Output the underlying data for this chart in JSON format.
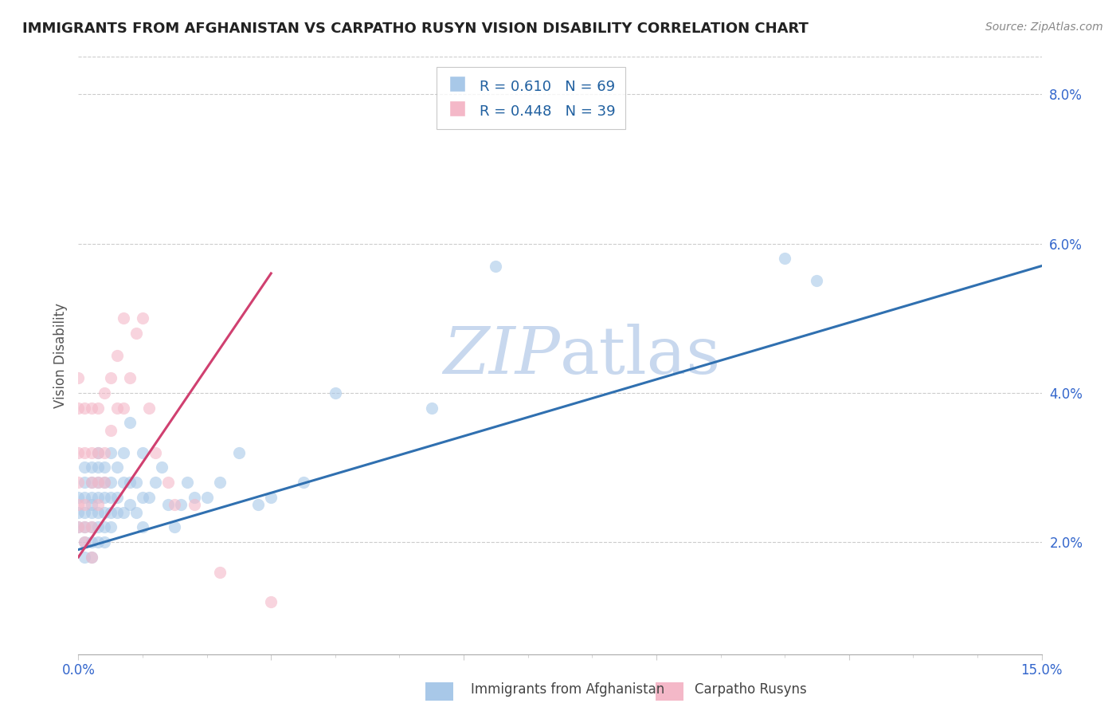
{
  "title": "IMMIGRANTS FROM AFGHANISTAN VS CARPATHO RUSYN VISION DISABILITY CORRELATION CHART",
  "source": "Source: ZipAtlas.com",
  "ylabel": "Vision Disability",
  "xmin": 0.0,
  "xmax": 0.15,
  "ymin": 0.005,
  "ymax": 0.085,
  "color_blue": "#a8c8e8",
  "color_pink": "#f4b8c8",
  "color_blue_line": "#3070b0",
  "color_pink_line": "#d04070",
  "color_blue_dark": "#2060a0",
  "watermark_color": "#c8d8ee",
  "afghanistan_x": [
    0.0,
    0.0,
    0.0,
    0.001,
    0.001,
    0.001,
    0.001,
    0.001,
    0.001,
    0.001,
    0.002,
    0.002,
    0.002,
    0.002,
    0.002,
    0.002,
    0.002,
    0.002,
    0.003,
    0.003,
    0.003,
    0.003,
    0.003,
    0.003,
    0.003,
    0.004,
    0.004,
    0.004,
    0.004,
    0.004,
    0.004,
    0.005,
    0.005,
    0.005,
    0.005,
    0.005,
    0.006,
    0.006,
    0.006,
    0.007,
    0.007,
    0.007,
    0.008,
    0.008,
    0.008,
    0.009,
    0.009,
    0.01,
    0.01,
    0.01,
    0.011,
    0.012,
    0.013,
    0.014,
    0.015,
    0.016,
    0.017,
    0.018,
    0.02,
    0.022,
    0.025,
    0.028,
    0.03,
    0.035,
    0.04,
    0.055,
    0.065,
    0.11,
    0.115
  ],
  "afghanistan_y": [
    0.022,
    0.024,
    0.026,
    0.018,
    0.02,
    0.022,
    0.024,
    0.026,
    0.028,
    0.03,
    0.018,
    0.02,
    0.022,
    0.024,
    0.025,
    0.026,
    0.028,
    0.03,
    0.02,
    0.022,
    0.024,
    0.026,
    0.028,
    0.03,
    0.032,
    0.02,
    0.022,
    0.024,
    0.026,
    0.028,
    0.03,
    0.022,
    0.024,
    0.026,
    0.028,
    0.032,
    0.024,
    0.026,
    0.03,
    0.024,
    0.028,
    0.032,
    0.025,
    0.028,
    0.036,
    0.024,
    0.028,
    0.022,
    0.026,
    0.032,
    0.026,
    0.028,
    0.03,
    0.025,
    0.022,
    0.025,
    0.028,
    0.026,
    0.026,
    0.028,
    0.032,
    0.025,
    0.026,
    0.028,
    0.04,
    0.038,
    0.057,
    0.058,
    0.055
  ],
  "rusyn_x": [
    0.0,
    0.0,
    0.0,
    0.0,
    0.0,
    0.0,
    0.001,
    0.001,
    0.001,
    0.001,
    0.001,
    0.002,
    0.002,
    0.002,
    0.002,
    0.002,
    0.003,
    0.003,
    0.003,
    0.003,
    0.004,
    0.004,
    0.004,
    0.005,
    0.005,
    0.006,
    0.006,
    0.007,
    0.007,
    0.008,
    0.009,
    0.01,
    0.011,
    0.012,
    0.014,
    0.015,
    0.018,
    0.022,
    0.03
  ],
  "rusyn_y": [
    0.022,
    0.025,
    0.028,
    0.032,
    0.038,
    0.042,
    0.02,
    0.022,
    0.025,
    0.032,
    0.038,
    0.018,
    0.022,
    0.028,
    0.032,
    0.038,
    0.025,
    0.028,
    0.032,
    0.038,
    0.028,
    0.032,
    0.04,
    0.035,
    0.042,
    0.038,
    0.045,
    0.038,
    0.05,
    0.042,
    0.048,
    0.05,
    0.038,
    0.032,
    0.028,
    0.025,
    0.025,
    0.016,
    0.012
  ],
  "blue_line_x": [
    0.0,
    0.15
  ],
  "blue_line_y": [
    0.019,
    0.057
  ],
  "pink_line_x": [
    0.0,
    0.03
  ],
  "pink_line_y": [
    0.018,
    0.056
  ]
}
